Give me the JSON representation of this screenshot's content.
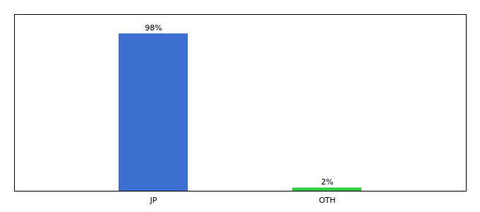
{
  "chart_data": {
    "type": "bar",
    "categories": [
      "JP",
      "OTH"
    ],
    "values": [
      98,
      2
    ],
    "value_labels": [
      "98%",
      "2%"
    ],
    "colors": [
      "#3d6fd1",
      "#2ecc40"
    ],
    "ylim": [
      0,
      110
    ],
    "yticks": [],
    "tick_labels": "x",
    "data_labels": true
  }
}
